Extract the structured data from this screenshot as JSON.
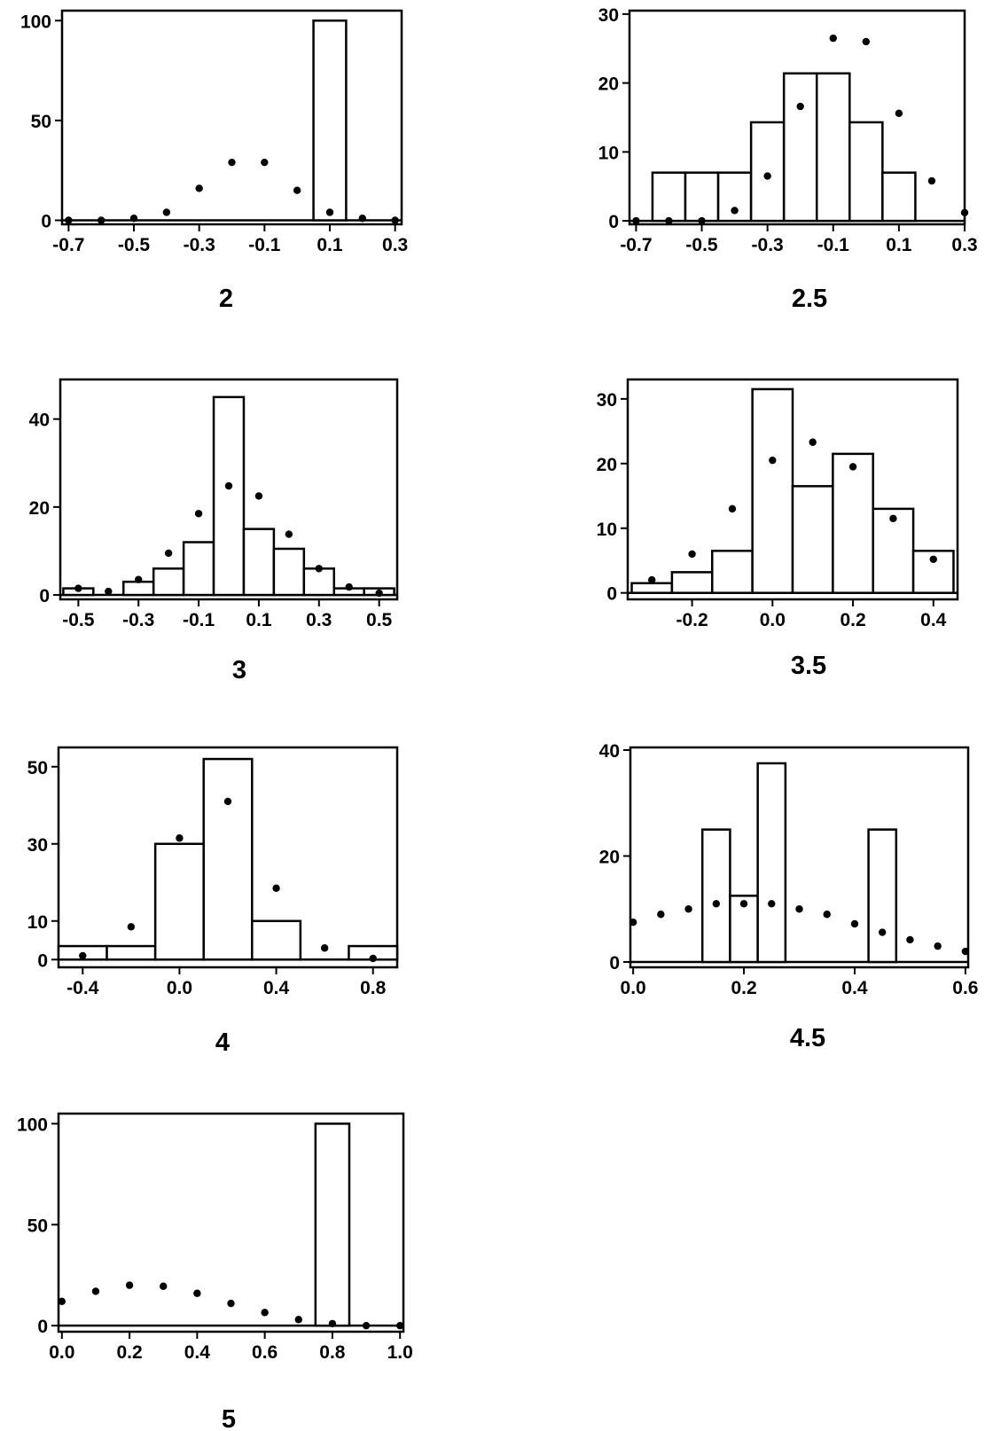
{
  "chart_data": [
    {
      "type": "bar",
      "title": "2",
      "xticks": [
        "-0.7",
        "-0.5",
        "-0.3",
        "-0.1",
        "0.1",
        "0.3"
      ],
      "xtick_values": [
        -0.7,
        -0.5,
        -0.3,
        -0.1,
        0.1,
        0.3
      ],
      "yticks": [
        "0",
        "50",
        "100"
      ],
      "ytick_values": [
        0,
        50,
        100
      ],
      "xlim": [
        -0.72,
        0.32
      ],
      "ylim": [
        -2,
        105
      ],
      "bars": [
        {
          "x0": -0.7,
          "x1": 0.05,
          "height": 0
        },
        {
          "x0": 0.05,
          "x1": 0.15,
          "height": 100
        },
        {
          "x0": 0.15,
          "x1": 0.3,
          "height": 0
        }
      ],
      "points": [
        {
          "x": -0.7,
          "y": 0
        },
        {
          "x": -0.6,
          "y": 0
        },
        {
          "x": -0.5,
          "y": 1
        },
        {
          "x": -0.4,
          "y": 4
        },
        {
          "x": -0.3,
          "y": 16
        },
        {
          "x": -0.2,
          "y": 29
        },
        {
          "x": -0.1,
          "y": 29
        },
        {
          "x": 0.0,
          "y": 15
        },
        {
          "x": 0.1,
          "y": 4
        },
        {
          "x": 0.2,
          "y": 1
        },
        {
          "x": 0.3,
          "y": 0
        }
      ]
    },
    {
      "type": "bar",
      "title": "2.5",
      "xticks": [
        "-0.7",
        "-0.5",
        "-0.3",
        "-0.1",
        "0.1",
        "0.3"
      ],
      "xtick_values": [
        -0.7,
        -0.5,
        -0.3,
        -0.1,
        0.1,
        0.3
      ],
      "yticks": [
        "0",
        "10",
        "20",
        "30"
      ],
      "ytick_values": [
        0,
        10,
        20,
        30
      ],
      "xlim": [
        -0.72,
        0.3
      ],
      "ylim": [
        -0.5,
        30.5
      ],
      "bars": [
        {
          "x0": -0.65,
          "x1": -0.55,
          "height": 7
        },
        {
          "x0": -0.55,
          "x1": -0.45,
          "height": 7
        },
        {
          "x0": -0.45,
          "x1": -0.35,
          "height": 7
        },
        {
          "x0": -0.35,
          "x1": -0.25,
          "height": 14.3
        },
        {
          "x0": -0.25,
          "x1": -0.15,
          "height": 21.4
        },
        {
          "x0": -0.15,
          "x1": -0.05,
          "height": 21.4
        },
        {
          "x0": -0.05,
          "x1": 0.05,
          "height": 14.3
        },
        {
          "x0": 0.05,
          "x1": 0.15,
          "height": 7
        }
      ],
      "points": [
        {
          "x": -0.7,
          "y": 0
        },
        {
          "x": -0.6,
          "y": 0
        },
        {
          "x": -0.5,
          "y": 0
        },
        {
          "x": -0.4,
          "y": 1.5
        },
        {
          "x": -0.3,
          "y": 6.5
        },
        {
          "x": -0.2,
          "y": 16.6
        },
        {
          "x": -0.1,
          "y": 26.5
        },
        {
          "x": 0.0,
          "y": 26
        },
        {
          "x": 0.1,
          "y": 15.6
        },
        {
          "x": 0.2,
          "y": 5.8
        },
        {
          "x": 0.3,
          "y": 1.2
        }
      ]
    },
    {
      "type": "bar",
      "title": "3",
      "xticks": [
        "-0.5",
        "-0.3",
        "-0.1",
        "0.1",
        "0.3",
        "0.5"
      ],
      "xtick_values": [
        -0.5,
        -0.3,
        -0.1,
        0.1,
        0.3,
        0.5
      ],
      "yticks": [
        "0",
        "20",
        "40"
      ],
      "ytick_values": [
        0,
        20,
        40
      ],
      "xlim": [
        -0.56,
        0.56
      ],
      "ylim": [
        -1,
        49
      ],
      "bars": [
        {
          "x0": -0.55,
          "x1": -0.45,
          "height": 1.5
        },
        {
          "x0": -0.45,
          "x1": -0.35,
          "height": 0
        },
        {
          "x0": -0.35,
          "x1": -0.25,
          "height": 3
        },
        {
          "x0": -0.25,
          "x1": -0.15,
          "height": 6
        },
        {
          "x0": -0.15,
          "x1": -0.05,
          "height": 12
        },
        {
          "x0": -0.05,
          "x1": 0.05,
          "height": 45
        },
        {
          "x0": 0.05,
          "x1": 0.15,
          "height": 15
        },
        {
          "x0": 0.15,
          "x1": 0.25,
          "height": 10.5
        },
        {
          "x0": 0.25,
          "x1": 0.35,
          "height": 6
        },
        {
          "x0": 0.35,
          "x1": 0.45,
          "height": 1.5
        },
        {
          "x0": 0.45,
          "x1": 0.55,
          "height": 1.5
        }
      ],
      "points": [
        {
          "x": -0.5,
          "y": 1.5
        },
        {
          "x": -0.4,
          "y": 0.8
        },
        {
          "x": -0.3,
          "y": 3.5
        },
        {
          "x": -0.2,
          "y": 9.5
        },
        {
          "x": -0.1,
          "y": 18.5
        },
        {
          "x": 0.0,
          "y": 24.8
        },
        {
          "x": 0.1,
          "y": 22.5
        },
        {
          "x": 0.2,
          "y": 13.8
        },
        {
          "x": 0.3,
          "y": 6
        },
        {
          "x": 0.4,
          "y": 1.8
        },
        {
          "x": 0.5,
          "y": 0.4
        }
      ]
    },
    {
      "type": "bar",
      "title": "3.5",
      "xticks": [
        "-0.2",
        "0.0",
        "0.2",
        "0.4"
      ],
      "xtick_values": [
        -0.2,
        0.0,
        0.2,
        0.4
      ],
      "yticks": [
        "0",
        "10",
        "20",
        "30"
      ],
      "ytick_values": [
        0,
        10,
        20,
        30
      ],
      "xlim": [
        -0.36,
        0.46
      ],
      "ylim": [
        -1,
        33
      ],
      "bars": [
        {
          "x0": -0.35,
          "x1": -0.25,
          "height": 1.5
        },
        {
          "x0": -0.25,
          "x1": -0.15,
          "height": 3.2
        },
        {
          "x0": -0.15,
          "x1": -0.05,
          "height": 6.5
        },
        {
          "x0": -0.05,
          "x1": 0.05,
          "height": 31.5
        },
        {
          "x0": 0.05,
          "x1": 0.15,
          "height": 16.5
        },
        {
          "x0": 0.15,
          "x1": 0.25,
          "height": 21.5
        },
        {
          "x0": 0.25,
          "x1": 0.35,
          "height": 13
        },
        {
          "x0": 0.35,
          "x1": 0.45,
          "height": 6.5
        }
      ],
      "points": [
        {
          "x": -0.3,
          "y": 2
        },
        {
          "x": -0.2,
          "y": 6
        },
        {
          "x": -0.1,
          "y": 13
        },
        {
          "x": 0.0,
          "y": 20.5
        },
        {
          "x": 0.1,
          "y": 23.3
        },
        {
          "x": 0.2,
          "y": 19.5
        },
        {
          "x": 0.3,
          "y": 11.5
        },
        {
          "x": 0.4,
          "y": 5.2
        }
      ]
    },
    {
      "type": "bar",
      "title": "4",
      "xticks": [
        "-0.4",
        "0.0",
        "0.4",
        "0.8"
      ],
      "xtick_values": [
        -0.4,
        0.0,
        0.4,
        0.8
      ],
      "yticks": [
        "0",
        "10",
        "30",
        "50"
      ],
      "ytick_values": [
        0,
        10,
        30,
        50
      ],
      "xlim": [
        -0.5,
        0.9
      ],
      "ylim": [
        -2,
        55
      ],
      "bars": [
        {
          "x0": -0.5,
          "x1": -0.3,
          "height": 3.5
        },
        {
          "x0": -0.3,
          "x1": -0.1,
          "height": 3.5
        },
        {
          "x0": -0.1,
          "x1": 0.1,
          "height": 30
        },
        {
          "x0": 0.1,
          "x1": 0.3,
          "height": 52
        },
        {
          "x0": 0.3,
          "x1": 0.5,
          "height": 10
        },
        {
          "x0": 0.5,
          "x1": 0.7,
          "height": 0
        },
        {
          "x0": 0.7,
          "x1": 0.9,
          "height": 3.5
        }
      ],
      "points": [
        {
          "x": -0.4,
          "y": 1
        },
        {
          "x": -0.2,
          "y": 8.5
        },
        {
          "x": 0.0,
          "y": 31.5
        },
        {
          "x": 0.2,
          "y": 41
        },
        {
          "x": 0.4,
          "y": 18.5
        },
        {
          "x": 0.6,
          "y": 3
        },
        {
          "x": 0.8,
          "y": 0.3
        }
      ]
    },
    {
      "type": "bar",
      "title": "4.5",
      "xticks": [
        "0.0",
        "0.2",
        "0.4",
        "0.6"
      ],
      "xtick_values": [
        0.0,
        0.2,
        0.4,
        0.6
      ],
      "yticks": [
        "0",
        "20",
        "40"
      ],
      "ytick_values": [
        0,
        20,
        40
      ],
      "xlim": [
        -0.005,
        0.605
      ],
      "ylim": [
        -1,
        40.5
      ],
      "bars": [
        {
          "x0": 0.125,
          "x1": 0.175,
          "height": 25
        },
        {
          "x0": 0.175,
          "x1": 0.225,
          "height": 12.5
        },
        {
          "x0": 0.225,
          "x1": 0.275,
          "height": 37.5
        },
        {
          "x0": 0.425,
          "x1": 0.475,
          "height": 25
        }
      ],
      "points": [
        {
          "x": 0.0,
          "y": 7.5
        },
        {
          "x": 0.05,
          "y": 9
        },
        {
          "x": 0.1,
          "y": 10
        },
        {
          "x": 0.15,
          "y": 11
        },
        {
          "x": 0.2,
          "y": 11
        },
        {
          "x": 0.25,
          "y": 11
        },
        {
          "x": 0.3,
          "y": 10
        },
        {
          "x": 0.35,
          "y": 9
        },
        {
          "x": 0.4,
          "y": 7.2
        },
        {
          "x": 0.45,
          "y": 5.6
        },
        {
          "x": 0.5,
          "y": 4.2
        },
        {
          "x": 0.55,
          "y": 3
        },
        {
          "x": 0.6,
          "y": 2
        }
      ]
    },
    {
      "type": "bar",
      "title": "5",
      "xticks": [
        "0.0",
        "0.2",
        "0.4",
        "0.6",
        "0.8",
        "1.0"
      ],
      "xtick_values": [
        0.0,
        0.2,
        0.4,
        0.6,
        0.8,
        1.0
      ],
      "yticks": [
        "0",
        "50",
        "100"
      ],
      "ytick_values": [
        0,
        50,
        100
      ],
      "xlim": [
        -0.01,
        1.01
      ],
      "ylim": [
        -3,
        105
      ],
      "bars": [
        {
          "x0": 0.0,
          "x1": 0.75,
          "height": 0
        },
        {
          "x0": 0.75,
          "x1": 0.85,
          "height": 100
        },
        {
          "x0": 0.85,
          "x1": 1.0,
          "height": 0
        }
      ],
      "points": [
        {
          "x": 0.0,
          "y": 12
        },
        {
          "x": 0.1,
          "y": 17
        },
        {
          "x": 0.2,
          "y": 20
        },
        {
          "x": 0.3,
          "y": 19.5
        },
        {
          "x": 0.4,
          "y": 16
        },
        {
          "x": 0.5,
          "y": 11
        },
        {
          "x": 0.6,
          "y": 6.5
        },
        {
          "x": 0.7,
          "y": 3
        },
        {
          "x": 0.8,
          "y": 1
        },
        {
          "x": 0.9,
          "y": 0
        },
        {
          "x": 1.0,
          "y": 0
        }
      ]
    }
  ]
}
